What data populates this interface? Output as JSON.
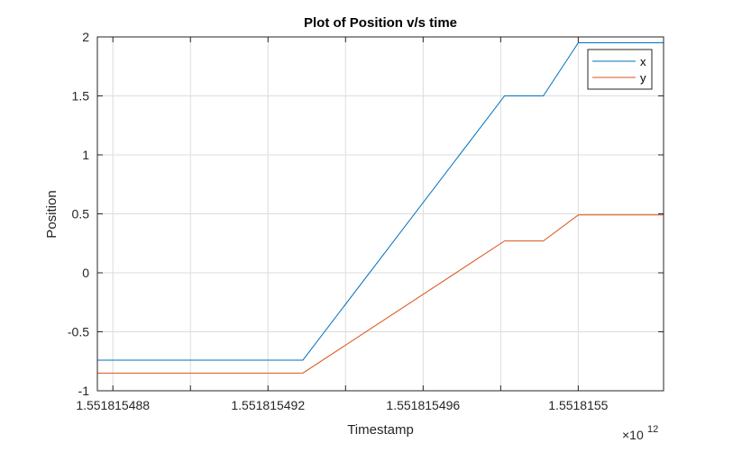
{
  "chart_data": {
    "type": "line",
    "title": "Plot of Position v/s time",
    "xlabel": "Timestamp",
    "ylabel": "Position",
    "x_scale_exponent_label": "×10",
    "x_scale_exponent_power": "12",
    "xlim": [
      1.5518154876,
      1.5518155022
    ],
    "ylim": [
      -1,
      2
    ],
    "x_ticks": [
      1.551815488,
      1.551815492,
      1.551815496,
      1.5518155
    ],
    "x_tick_labels": [
      "1.551815488",
      "1.551815492",
      "1.551815496",
      "1.5518155"
    ],
    "y_ticks": [
      -1,
      -0.5,
      0,
      0.5,
      1,
      1.5,
      2
    ],
    "y_tick_labels": [
      "-1",
      "-0.5",
      "0",
      "0.5",
      "1",
      "1.5",
      "2"
    ],
    "x_minor_gridlines": [
      1.55181549,
      1.551815494,
      1.551815498
    ],
    "grid": true,
    "legend_position": "top-right",
    "series": [
      {
        "name": "x",
        "color": "#0072BD",
        "x": [
          1.5518154876,
          1.5518154929,
          1.5518154981,
          1.5518154991,
          1.5518155,
          1.5518155022
        ],
        "y": [
          -0.74,
          -0.74,
          1.5,
          1.5,
          1.95,
          1.95
        ]
      },
      {
        "name": "y",
        "color": "#D95319",
        "x": [
          1.5518154876,
          1.5518154929,
          1.5518154981,
          1.5518154991,
          1.5518155,
          1.5518155022
        ],
        "y": [
          -0.85,
          -0.85,
          0.27,
          0.27,
          0.49,
          0.49
        ]
      }
    ]
  }
}
